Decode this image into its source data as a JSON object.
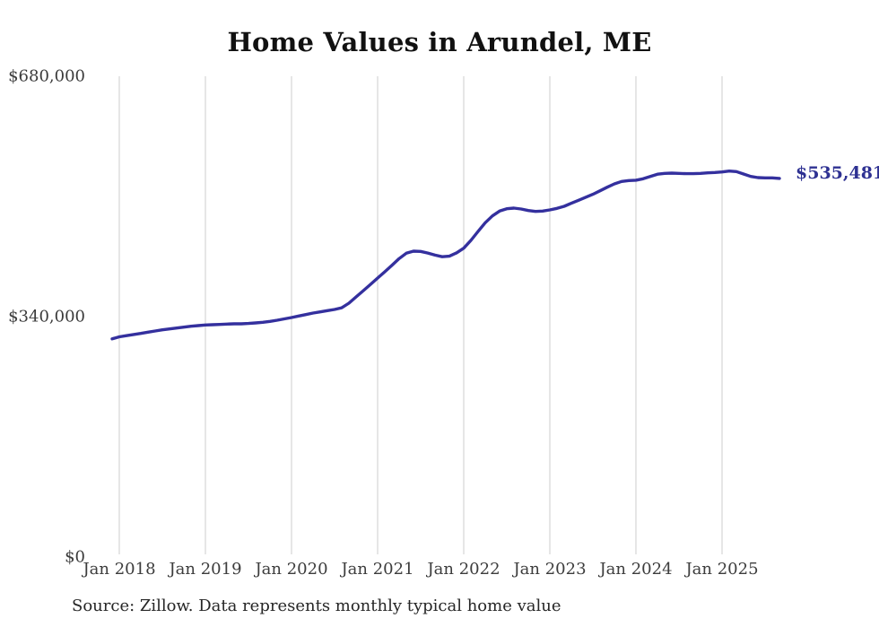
{
  "title": "Home Values in Arundel, ME",
  "end_label": "$535,481",
  "source_note": "Source: Zillow. Data represents monthly typical home value",
  "colors": {
    "background": "#ffffff",
    "line": "#34309e",
    "grid": "#cccccc",
    "title_text": "#111111",
    "axis_text": "#3c3c3c",
    "source_text": "#262626",
    "end_label_text": "#2e3192"
  },
  "chart_data": {
    "type": "line",
    "title": "Home Values in Arundel, ME",
    "xlabel": "",
    "ylabel": "",
    "ylim": [
      0,
      680000
    ],
    "grid": "vertical-only",
    "legend": "none",
    "y_ticks": [
      {
        "label": "$0",
        "value": 0
      },
      {
        "label": "$340,000",
        "value": 340000
      },
      {
        "label": "$680,000",
        "value": 680000
      }
    ],
    "x_ticks": [
      {
        "label": "Jan 2018",
        "month_index": 1
      },
      {
        "label": "Jan 2019",
        "month_index": 13
      },
      {
        "label": "Jan 2020",
        "month_index": 25
      },
      {
        "label": "Jan 2021",
        "month_index": 37
      },
      {
        "label": "Jan 2022",
        "month_index": 49
      },
      {
        "label": "Jan 2023",
        "month_index": 61
      },
      {
        "label": "Jan 2024",
        "month_index": 73
      },
      {
        "label": "Jan 2025",
        "month_index": 85
      }
    ],
    "last_value": 535481,
    "last_value_label": "$535,481",
    "series": [
      {
        "name": "Monthly typical home value",
        "interval": "monthly",
        "start_month": "Dec 2017",
        "end_month": "Sep 2025",
        "values": [
          308500,
          311400,
          313100,
          314700,
          316300,
          318000,
          319700,
          321300,
          322600,
          323900,
          325200,
          326400,
          327300,
          328200,
          328600,
          329000,
          329500,
          329900,
          329900,
          330300,
          331100,
          332000,
          333300,
          334900,
          336800,
          338700,
          340900,
          342900,
          345100,
          346700,
          348500,
          350200,
          352600,
          359000,
          367900,
          376700,
          385600,
          394600,
          403400,
          412700,
          422100,
          429700,
          432600,
          432200,
          430000,
          427000,
          424800,
          425500,
          430200,
          436800,
          447800,
          460500,
          472800,
          482500,
          489300,
          492600,
          493500,
          492200,
          490100,
          488800,
          489300,
          491000,
          493100,
          496100,
          500300,
          504600,
          508800,
          513000,
          518000,
          523100,
          527800,
          531200,
          532500,
          532900,
          535000,
          538300,
          541400,
          542600,
          543000,
          542600,
          542200,
          542200,
          542600,
          543400,
          543900,
          544600,
          545900,
          545100,
          541700,
          538300,
          536700,
          536300,
          536300,
          535481
        ]
      }
    ]
  }
}
